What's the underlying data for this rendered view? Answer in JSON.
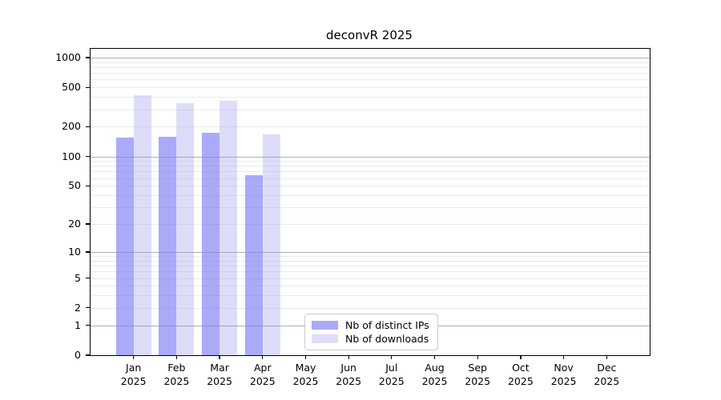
{
  "chart_data": {
    "type": "bar",
    "title": "deconvR 2025",
    "categories": [
      "Jan",
      "Feb",
      "Mar",
      "Apr",
      "May",
      "Jun",
      "Jul",
      "Aug",
      "Sep",
      "Oct",
      "Nov",
      "Dec"
    ],
    "category_sublabel": "2025",
    "series": [
      {
        "name": "Nb of distinct IPs",
        "color": "rgba(124,124,244,0.65)",
        "values": [
          155,
          157,
          175,
          64,
          0,
          0,
          0,
          0,
          0,
          0,
          0,
          0
        ]
      },
      {
        "name": "Nb of downloads",
        "color": "rgba(142,142,238,0.30)",
        "values": [
          420,
          345,
          365,
          168,
          0,
          0,
          0,
          0,
          0,
          0,
          0,
          0
        ]
      }
    ],
    "y_axis": {
      "scale": "log10(value+1)",
      "tick_values": [
        1000,
        500,
        200,
        100,
        50,
        20,
        10,
        5,
        2,
        1,
        0
      ],
      "tick_labels": [
        "1000",
        "500",
        "200",
        "100",
        "50",
        "20",
        "10",
        "5",
        "2",
        "1",
        "0"
      ],
      "major_gridline_values": [
        1,
        10,
        100,
        1000
      ],
      "minor_gridline_values": [
        2,
        3,
        4,
        5,
        6,
        7,
        8,
        9,
        20,
        30,
        40,
        50,
        60,
        70,
        80,
        90,
        200,
        300,
        400,
        500,
        600,
        700,
        800,
        900
      ]
    },
    "x_axis": {
      "label_lines_per_category": 2
    },
    "legend": {
      "position": "lower-center",
      "entries": [
        "Nb of distinct IPs",
        "Nb of downloads"
      ]
    },
    "colors": {
      "major_grid": "#b0b0b0",
      "minor_grid": "#ebebeb",
      "axis": "#000000",
      "legend_border": "#cccccc"
    },
    "grid": true
  }
}
